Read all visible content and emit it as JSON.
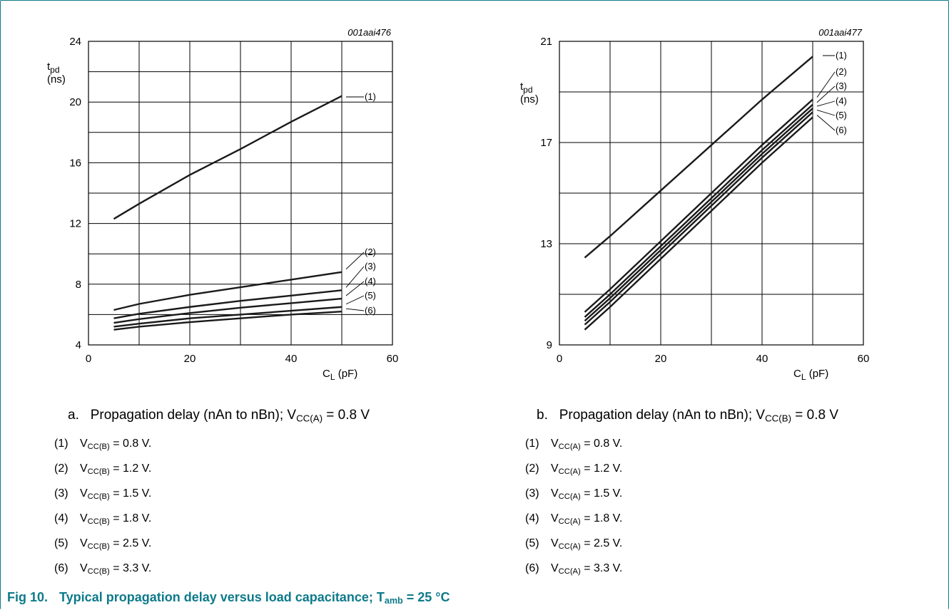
{
  "chart_data": [
    {
      "type": "line",
      "code": "001aai476",
      "ylabel": {
        "main": "t",
        "sub": "pd",
        "unit": "(ns)"
      },
      "xlabel": {
        "main": "C",
        "sub": "L",
        "unit": " (pF)"
      },
      "xlim": [
        0,
        60
      ],
      "ylim": [
        4,
        24
      ],
      "xticks": [
        "0",
        "20",
        "40",
        "60"
      ],
      "yticks": [
        "4",
        "8",
        "12",
        "16",
        "20",
        "24"
      ],
      "x_grid_step": 10,
      "y_grid_step": 2,
      "series": [
        {
          "name": "(1)",
          "x": [
            5,
            10,
            20,
            30,
            40,
            50
          ],
          "y": [
            12.3,
            13.3,
            15.2,
            16.9,
            18.7,
            20.4
          ]
        },
        {
          "name": "(2)",
          "x": [
            5,
            10,
            20,
            30,
            40,
            50
          ],
          "y": [
            6.3,
            6.7,
            7.3,
            7.8,
            8.3,
            8.8
          ]
        },
        {
          "name": "(3)",
          "x": [
            5,
            10,
            20,
            30,
            40,
            50
          ],
          "y": [
            5.75,
            6.05,
            6.5,
            6.9,
            7.25,
            7.6
          ]
        },
        {
          "name": "(4)",
          "x": [
            5,
            10,
            20,
            30,
            40,
            50
          ],
          "y": [
            5.45,
            5.7,
            6.1,
            6.45,
            6.75,
            7.05
          ]
        },
        {
          "name": "(5)",
          "x": [
            5,
            10,
            20,
            30,
            40,
            50
          ],
          "y": [
            5.2,
            5.4,
            5.75,
            6.0,
            6.25,
            6.5
          ]
        },
        {
          "name": "(6)",
          "x": [
            5,
            10,
            20,
            30,
            40,
            50
          ],
          "y": [
            5.0,
            5.2,
            5.5,
            5.75,
            6.0,
            6.2
          ]
        }
      ]
    },
    {
      "type": "line",
      "code": "001aai477",
      "ylabel": {
        "main": "t",
        "sub": "pd",
        "unit": "(ns)"
      },
      "xlabel": {
        "main": "C",
        "sub": "L",
        "unit": " (pF)"
      },
      "xlim": [
        0,
        60
      ],
      "ylim": [
        9,
        21
      ],
      "xticks": [
        "0",
        "20",
        "40",
        "60"
      ],
      "yticks": [
        "9",
        "13",
        "17",
        "21"
      ],
      "x_grid_step": 10,
      "y_grid_step": 2,
      "series": [
        {
          "name": "(1)",
          "x": [
            5,
            10,
            20,
            30,
            40,
            50
          ],
          "y": [
            12.45,
            13.3,
            15.1,
            16.9,
            18.7,
            20.4
          ]
        },
        {
          "name": "(2)",
          "x": [
            5,
            10,
            20,
            30,
            40,
            50
          ],
          "y": [
            10.3,
            11.2,
            13.1,
            15.0,
            16.9,
            18.7
          ]
        },
        {
          "name": "(3)",
          "x": [
            5,
            10,
            20,
            30,
            40,
            50
          ],
          "y": [
            10.1,
            11.0,
            12.9,
            14.8,
            16.7,
            18.5
          ]
        },
        {
          "name": "(4)",
          "x": [
            5,
            10,
            20,
            30,
            40,
            50
          ],
          "y": [
            9.95,
            10.85,
            12.75,
            14.65,
            16.55,
            18.35
          ]
        },
        {
          "name": "(5)",
          "x": [
            5,
            10,
            20,
            30,
            40,
            50
          ],
          "y": [
            9.8,
            10.7,
            12.6,
            14.5,
            16.4,
            18.2
          ]
        },
        {
          "name": "(6)",
          "x": [
            5,
            10,
            20,
            30,
            40,
            50
          ],
          "y": [
            9.6,
            10.5,
            12.4,
            14.3,
            16.2,
            18.0
          ]
        }
      ]
    }
  ],
  "captions": {
    "a": {
      "prefix": "a.",
      "text": "Propagation delay (nAn to nBn); V",
      "sub": "CC(A)",
      "suffix": " = 0.8 V"
    },
    "b": {
      "prefix": "b.",
      "text": "Propagation delay (nAn to nBn); V",
      "sub": "CC(B)",
      "suffix": " = 0.8 V"
    }
  },
  "legend_a": [
    {
      "num": "(1)",
      "v": "V",
      "sub": "CC(B)",
      "value": " = 0.8 V."
    },
    {
      "num": "(2)",
      "v": "V",
      "sub": "CC(B)",
      "value": " = 1.2 V."
    },
    {
      "num": "(3)",
      "v": "V",
      "sub": "CC(B)",
      "value": " = 1.5 V."
    },
    {
      "num": "(4)",
      "v": "V",
      "sub": "CC(B)",
      "value": " = 1.8 V."
    },
    {
      "num": "(5)",
      "v": "V",
      "sub": "CC(B)",
      "value": " = 2.5 V."
    },
    {
      "num": "(6)",
      "v": "V",
      "sub": "CC(B)",
      "value": " = 3.3 V."
    }
  ],
  "legend_b": [
    {
      "num": "(1)",
      "v": "V",
      "sub": "CC(A)",
      "value": " = 0.8 V."
    },
    {
      "num": "(2)",
      "v": "V",
      "sub": "CC(A)",
      "value": " = 1.2 V."
    },
    {
      "num": "(3)",
      "v": "V",
      "sub": "CC(A)",
      "value": " = 1.5 V."
    },
    {
      "num": "(4)",
      "v": "V",
      "sub": "CC(A)",
      "value": " = 1.8 V."
    },
    {
      "num": "(5)",
      "v": "V",
      "sub": "CC(A)",
      "value": " = 2.5 V."
    },
    {
      "num": "(6)",
      "v": "V",
      "sub": "CC(A)",
      "value": " = 3.3 V."
    }
  ],
  "figure_title": {
    "fig": "Fig 10.",
    "text": "Typical propagation delay versus load capacitance; T",
    "sub": "amb",
    "suffix": " = 25 °C"
  },
  "colors": {
    "accent": "#0d7a8a",
    "line": "#1a1a1a"
  }
}
